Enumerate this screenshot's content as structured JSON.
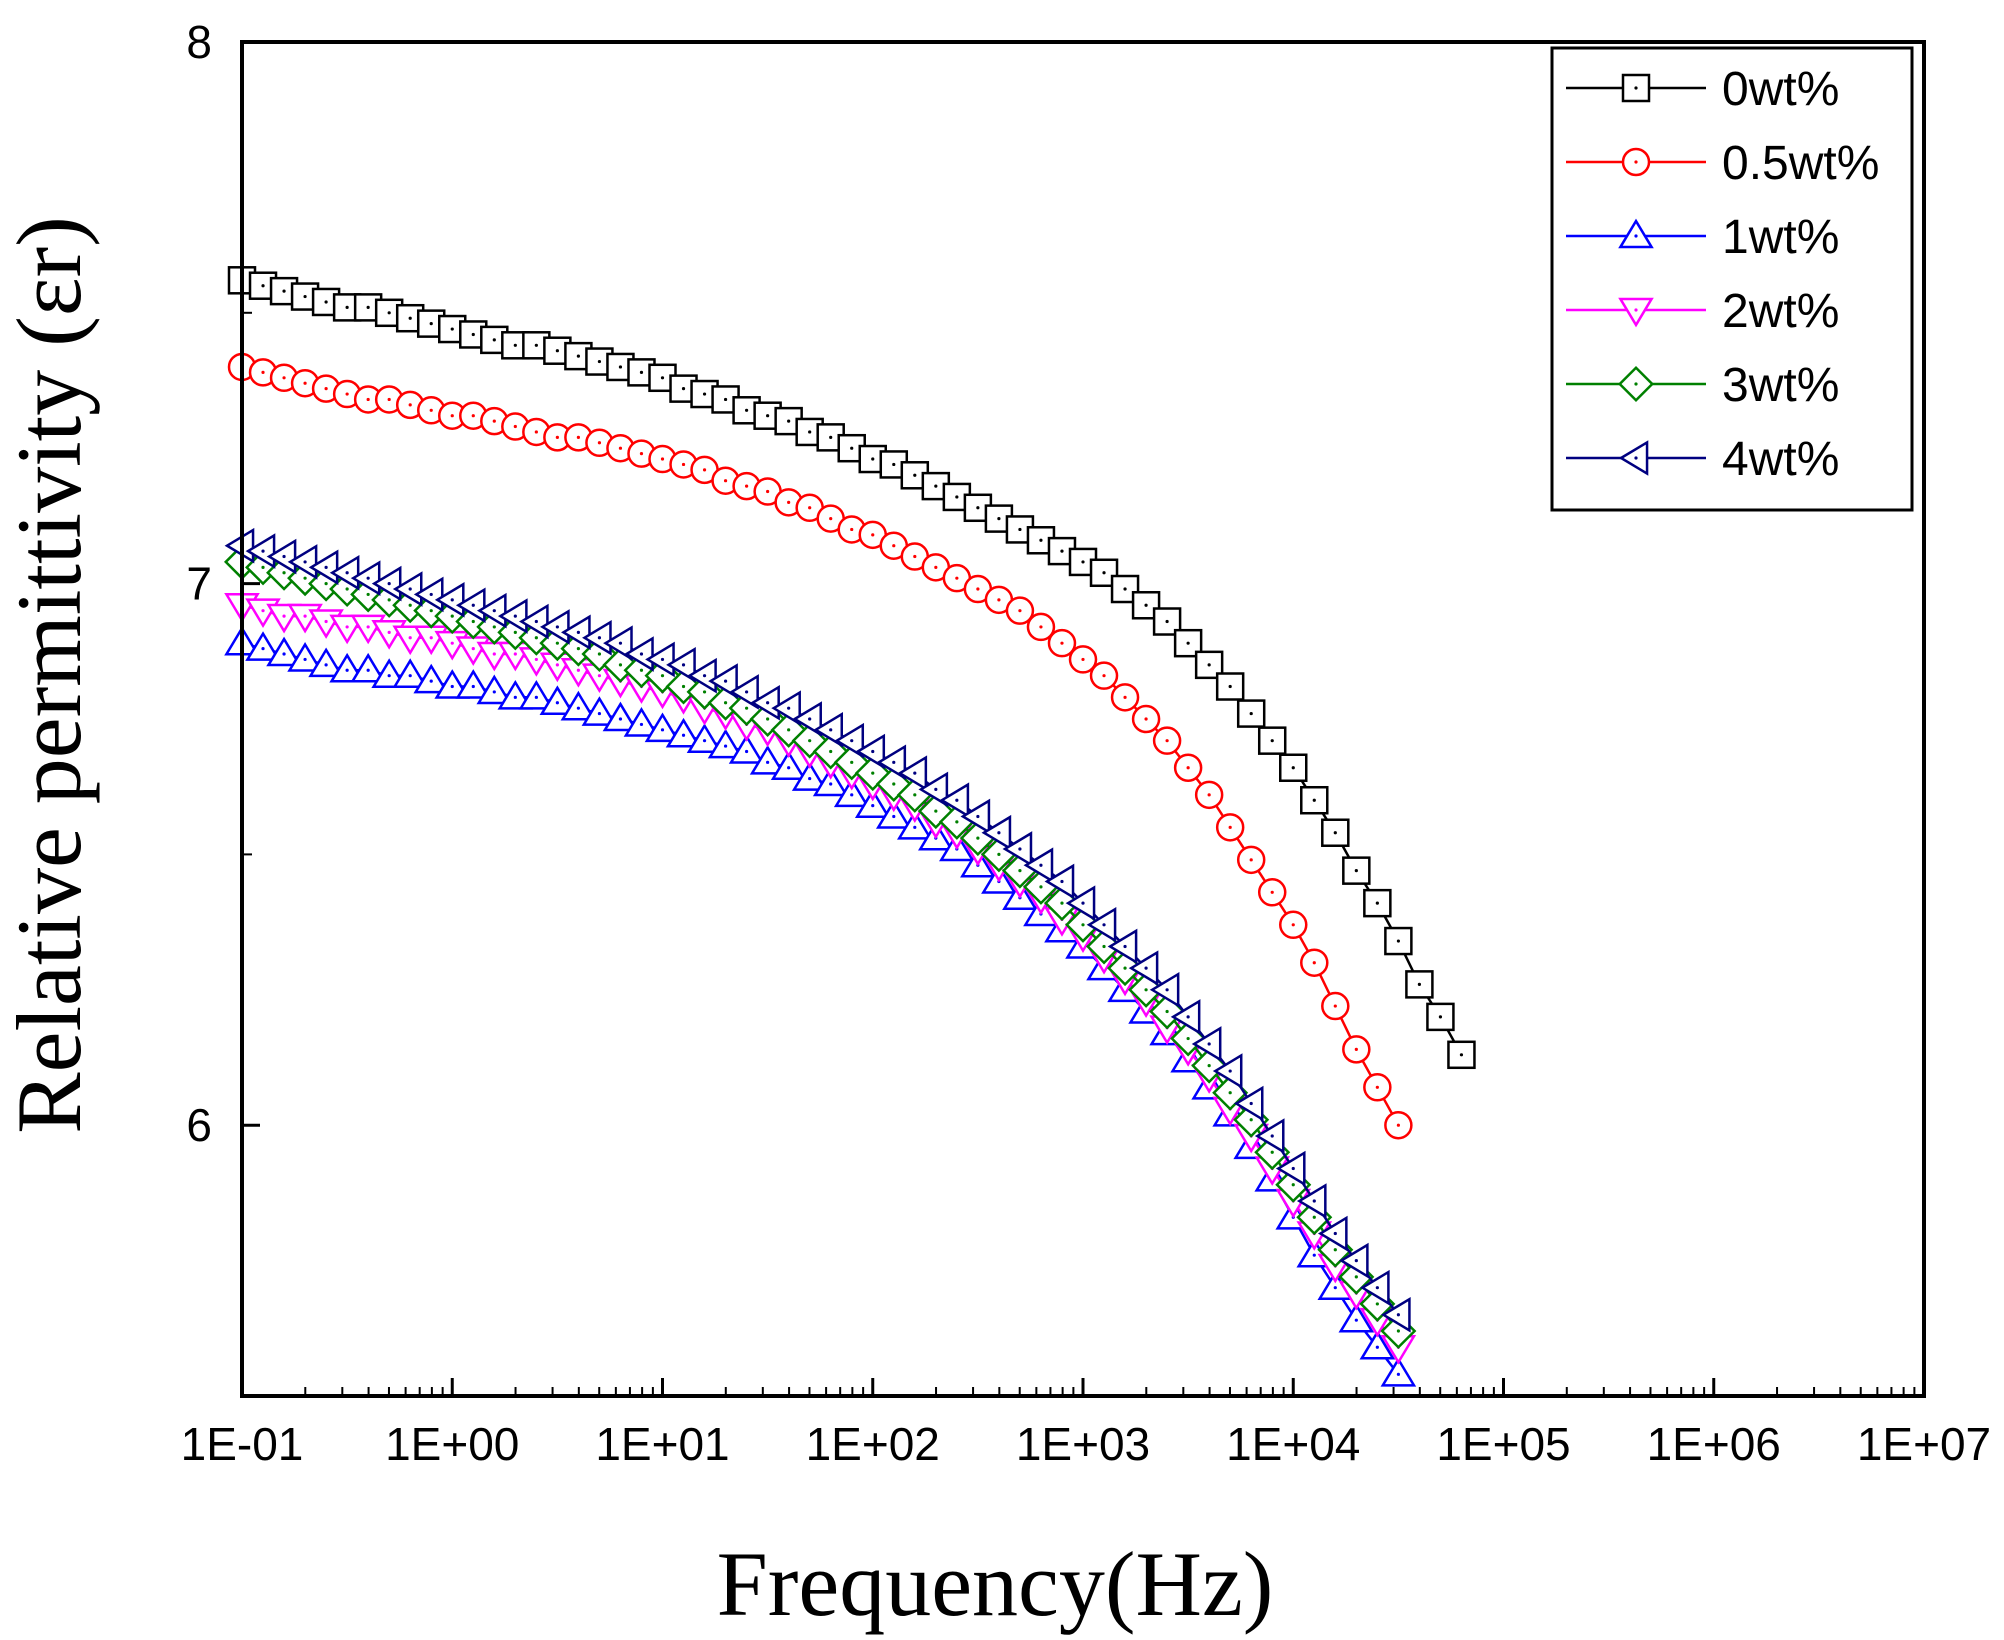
{
  "chart_data": {
    "type": "line",
    "title": "",
    "xlabel": "Frequency(Hz)",
    "ylabel": "Relative permittivity (εr)",
    "xscale": "log",
    "xlim_exp": [
      -1,
      7
    ],
    "ylim": [
      5.5,
      8.0
    ],
    "xticks": [
      "1E-01",
      "1E+00",
      "1E+01",
      "1E+02",
      "1E+03",
      "1E+04",
      "1E+05",
      "1E+06",
      "1E+07"
    ],
    "yticks": [
      "6",
      "7",
      "8"
    ],
    "ytick_values": [
      6,
      7,
      8
    ],
    "legend_position": "top-right",
    "points_per_decade": 10,
    "series": [
      {
        "name": "0wt%",
        "color": "#000000",
        "marker": "square",
        "values": [
          7.56,
          7.55,
          7.54,
          7.53,
          7.52,
          7.51,
          7.51,
          7.5,
          7.49,
          7.48,
          7.47,
          7.46,
          7.45,
          7.44,
          7.44,
          7.43,
          7.42,
          7.41,
          7.4,
          7.39,
          7.38,
          7.36,
          7.35,
          7.34,
          7.32,
          7.31,
          7.3,
          7.28,
          7.27,
          7.25,
          7.23,
          7.22,
          7.2,
          7.18,
          7.16,
          7.14,
          7.12,
          7.1,
          7.08,
          7.06,
          7.04,
          7.02,
          6.99,
          6.96,
          6.93,
          6.89,
          6.85,
          6.81,
          6.76,
          6.71,
          6.66,
          6.6,
          6.54,
          6.47,
          6.41,
          6.34,
          6.26,
          6.2,
          6.13
        ]
      },
      {
        "name": "0.5wt%",
        "color": "#ff0000",
        "marker": "circle",
        "values": [
          7.4,
          7.39,
          7.38,
          7.37,
          7.36,
          7.35,
          7.34,
          7.34,
          7.33,
          7.32,
          7.31,
          7.31,
          7.3,
          7.29,
          7.28,
          7.27,
          7.27,
          7.26,
          7.25,
          7.24,
          7.23,
          7.22,
          7.21,
          7.19,
          7.18,
          7.17,
          7.15,
          7.14,
          7.12,
          7.1,
          7.09,
          7.07,
          7.05,
          7.03,
          7.01,
          6.99,
          6.97,
          6.95,
          6.92,
          6.89,
          6.86,
          6.83,
          6.79,
          6.75,
          6.71,
          6.66,
          6.61,
          6.55,
          6.49,
          6.43,
          6.37,
          6.3,
          6.22,
          6.14,
          6.07,
          6.0
        ]
      },
      {
        "name": "1wt%",
        "color": "#0000ff",
        "marker": "triangle-up",
        "values": [
          6.89,
          6.88,
          6.87,
          6.86,
          6.85,
          6.84,
          6.84,
          6.83,
          6.83,
          6.82,
          6.81,
          6.81,
          6.8,
          6.79,
          6.79,
          6.78,
          6.77,
          6.76,
          6.75,
          6.74,
          6.73,
          6.72,
          6.71,
          6.7,
          6.69,
          6.67,
          6.66,
          6.64,
          6.63,
          6.61,
          6.59,
          6.57,
          6.55,
          6.53,
          6.51,
          6.48,
          6.45,
          6.42,
          6.39,
          6.36,
          6.33,
          6.29,
          6.25,
          6.21,
          6.17,
          6.12,
          6.07,
          6.02,
          5.96,
          5.9,
          5.83,
          5.76,
          5.7,
          5.64,
          5.59,
          5.54
        ]
      },
      {
        "name": "2wt%",
        "color": "#ff00ff",
        "marker": "triangle-down",
        "values": [
          6.96,
          6.95,
          6.94,
          6.94,
          6.93,
          6.92,
          6.92,
          6.91,
          6.9,
          6.9,
          6.89,
          6.88,
          6.87,
          6.87,
          6.86,
          6.85,
          6.84,
          6.83,
          6.82,
          6.81,
          6.8,
          6.79,
          6.77,
          6.76,
          6.74,
          6.73,
          6.71,
          6.69,
          6.67,
          6.65,
          6.63,
          6.61,
          6.59,
          6.56,
          6.54,
          6.51,
          6.48,
          6.45,
          6.42,
          6.38,
          6.35,
          6.31,
          6.27,
          6.23,
          6.18,
          6.14,
          6.09,
          6.03,
          5.98,
          5.92,
          5.86,
          5.8,
          5.74,
          5.69,
          5.64,
          5.59
        ]
      },
      {
        "name": "3wt%",
        "color": "#008000",
        "marker": "diamond",
        "values": [
          7.04,
          7.03,
          7.02,
          7.01,
          7.0,
          6.99,
          6.98,
          6.97,
          6.96,
          6.95,
          6.94,
          6.93,
          6.92,
          6.91,
          6.9,
          6.89,
          6.88,
          6.87,
          6.85,
          6.84,
          6.83,
          6.81,
          6.8,
          6.78,
          6.77,
          6.75,
          6.73,
          6.71,
          6.69,
          6.67,
          6.65,
          6.63,
          6.61,
          6.58,
          6.56,
          6.53,
          6.5,
          6.47,
          6.44,
          6.41,
          6.37,
          6.33,
          6.29,
          6.25,
          6.21,
          6.16,
          6.11,
          6.06,
          6.01,
          5.95,
          5.89,
          5.83,
          5.77,
          5.72,
          5.67,
          5.62
        ]
      },
      {
        "name": "4wt%",
        "color": "#000080",
        "marker": "triangle-left",
        "values": [
          7.07,
          7.06,
          7.05,
          7.04,
          7.03,
          7.02,
          7.01,
          7.0,
          6.99,
          6.98,
          6.97,
          6.96,
          6.95,
          6.94,
          6.93,
          6.92,
          6.91,
          6.9,
          6.89,
          6.87,
          6.86,
          6.85,
          6.83,
          6.82,
          6.8,
          6.78,
          6.77,
          6.75,
          6.73,
          6.71,
          6.69,
          6.67,
          6.65,
          6.62,
          6.6,
          6.57,
          6.54,
          6.51,
          6.48,
          6.45,
          6.41,
          6.37,
          6.33,
          6.29,
          6.25,
          6.2,
          6.15,
          6.1,
          6.04,
          5.98,
          5.92,
          5.86,
          5.8,
          5.75,
          5.7,
          5.65
        ]
      }
    ]
  }
}
